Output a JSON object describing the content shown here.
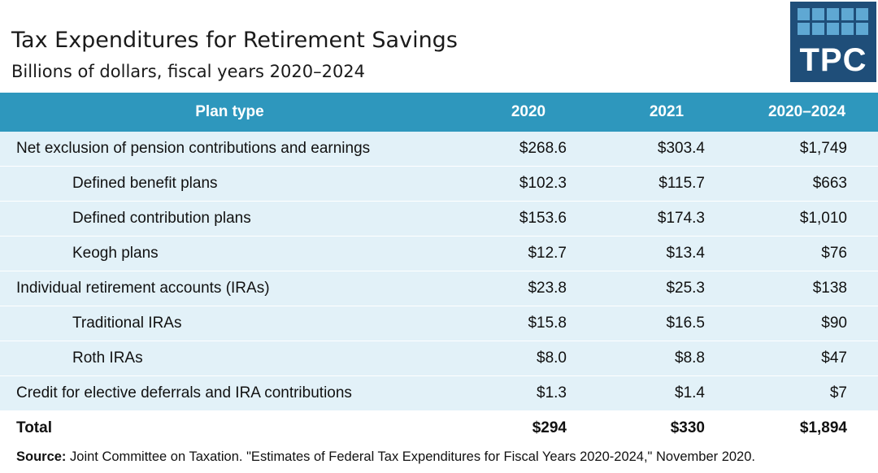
{
  "header": {
    "title": "Tax Expenditures for Retirement Savings",
    "subtitle": "Billions of dollars, fiscal years 2020–2024"
  },
  "logo": {
    "text": "TPC",
    "colors": {
      "background": "#1f4e79",
      "squares": "#5fa8d3"
    }
  },
  "table": {
    "columns": [
      "Plan type",
      "2020",
      "2021",
      "2020–2024"
    ],
    "rows": [
      {
        "label": "Net exclusion of pension contributions and earnings",
        "indent": false,
        "v2020": "$268.6",
        "v2021": "$303.4",
        "v2020_2024": "$1,749"
      },
      {
        "label": "Defined benefit plans",
        "indent": true,
        "v2020": "$102.3",
        "v2021": "$115.7",
        "v2020_2024": "$663"
      },
      {
        "label": "Defined contribution plans",
        "indent": true,
        "v2020": "$153.6",
        "v2021": "$174.3",
        "v2020_2024": "$1,010"
      },
      {
        "label": "Keogh plans",
        "indent": true,
        "v2020": "$12.7",
        "v2021": "$13.4",
        "v2020_2024": "$76"
      },
      {
        "label": "Individual retirement accounts (IRAs)",
        "indent": false,
        "v2020": "$23.8",
        "v2021": "$25.3",
        "v2020_2024": "$138"
      },
      {
        "label": "Traditional IRAs",
        "indent": true,
        "v2020": "$15.8",
        "v2021": "$16.5",
        "v2020_2024": "$90"
      },
      {
        "label": "Roth IRAs",
        "indent": true,
        "v2020": "$8.0",
        "v2021": "$8.8",
        "v2020_2024": "$47"
      },
      {
        "label": "Credit for elective deferrals and IRA contributions",
        "indent": false,
        "v2020": "$1.3",
        "v2021": "$1.4",
        "v2020_2024": "$7"
      }
    ],
    "total": {
      "label": "Total",
      "v2020": "$294",
      "v2021": "$330",
      "v2020_2024": "$1,894"
    }
  },
  "source": {
    "label": "Source:",
    "text": " Joint Committee on Taxation. \"Estimates of Federal Tax Expenditures for Fiscal Years 2020-2024,\" November 2020."
  },
  "colors": {
    "header_bg": "#2e97bd",
    "row_bg": "#e2f1f8",
    "text": "#111111"
  }
}
